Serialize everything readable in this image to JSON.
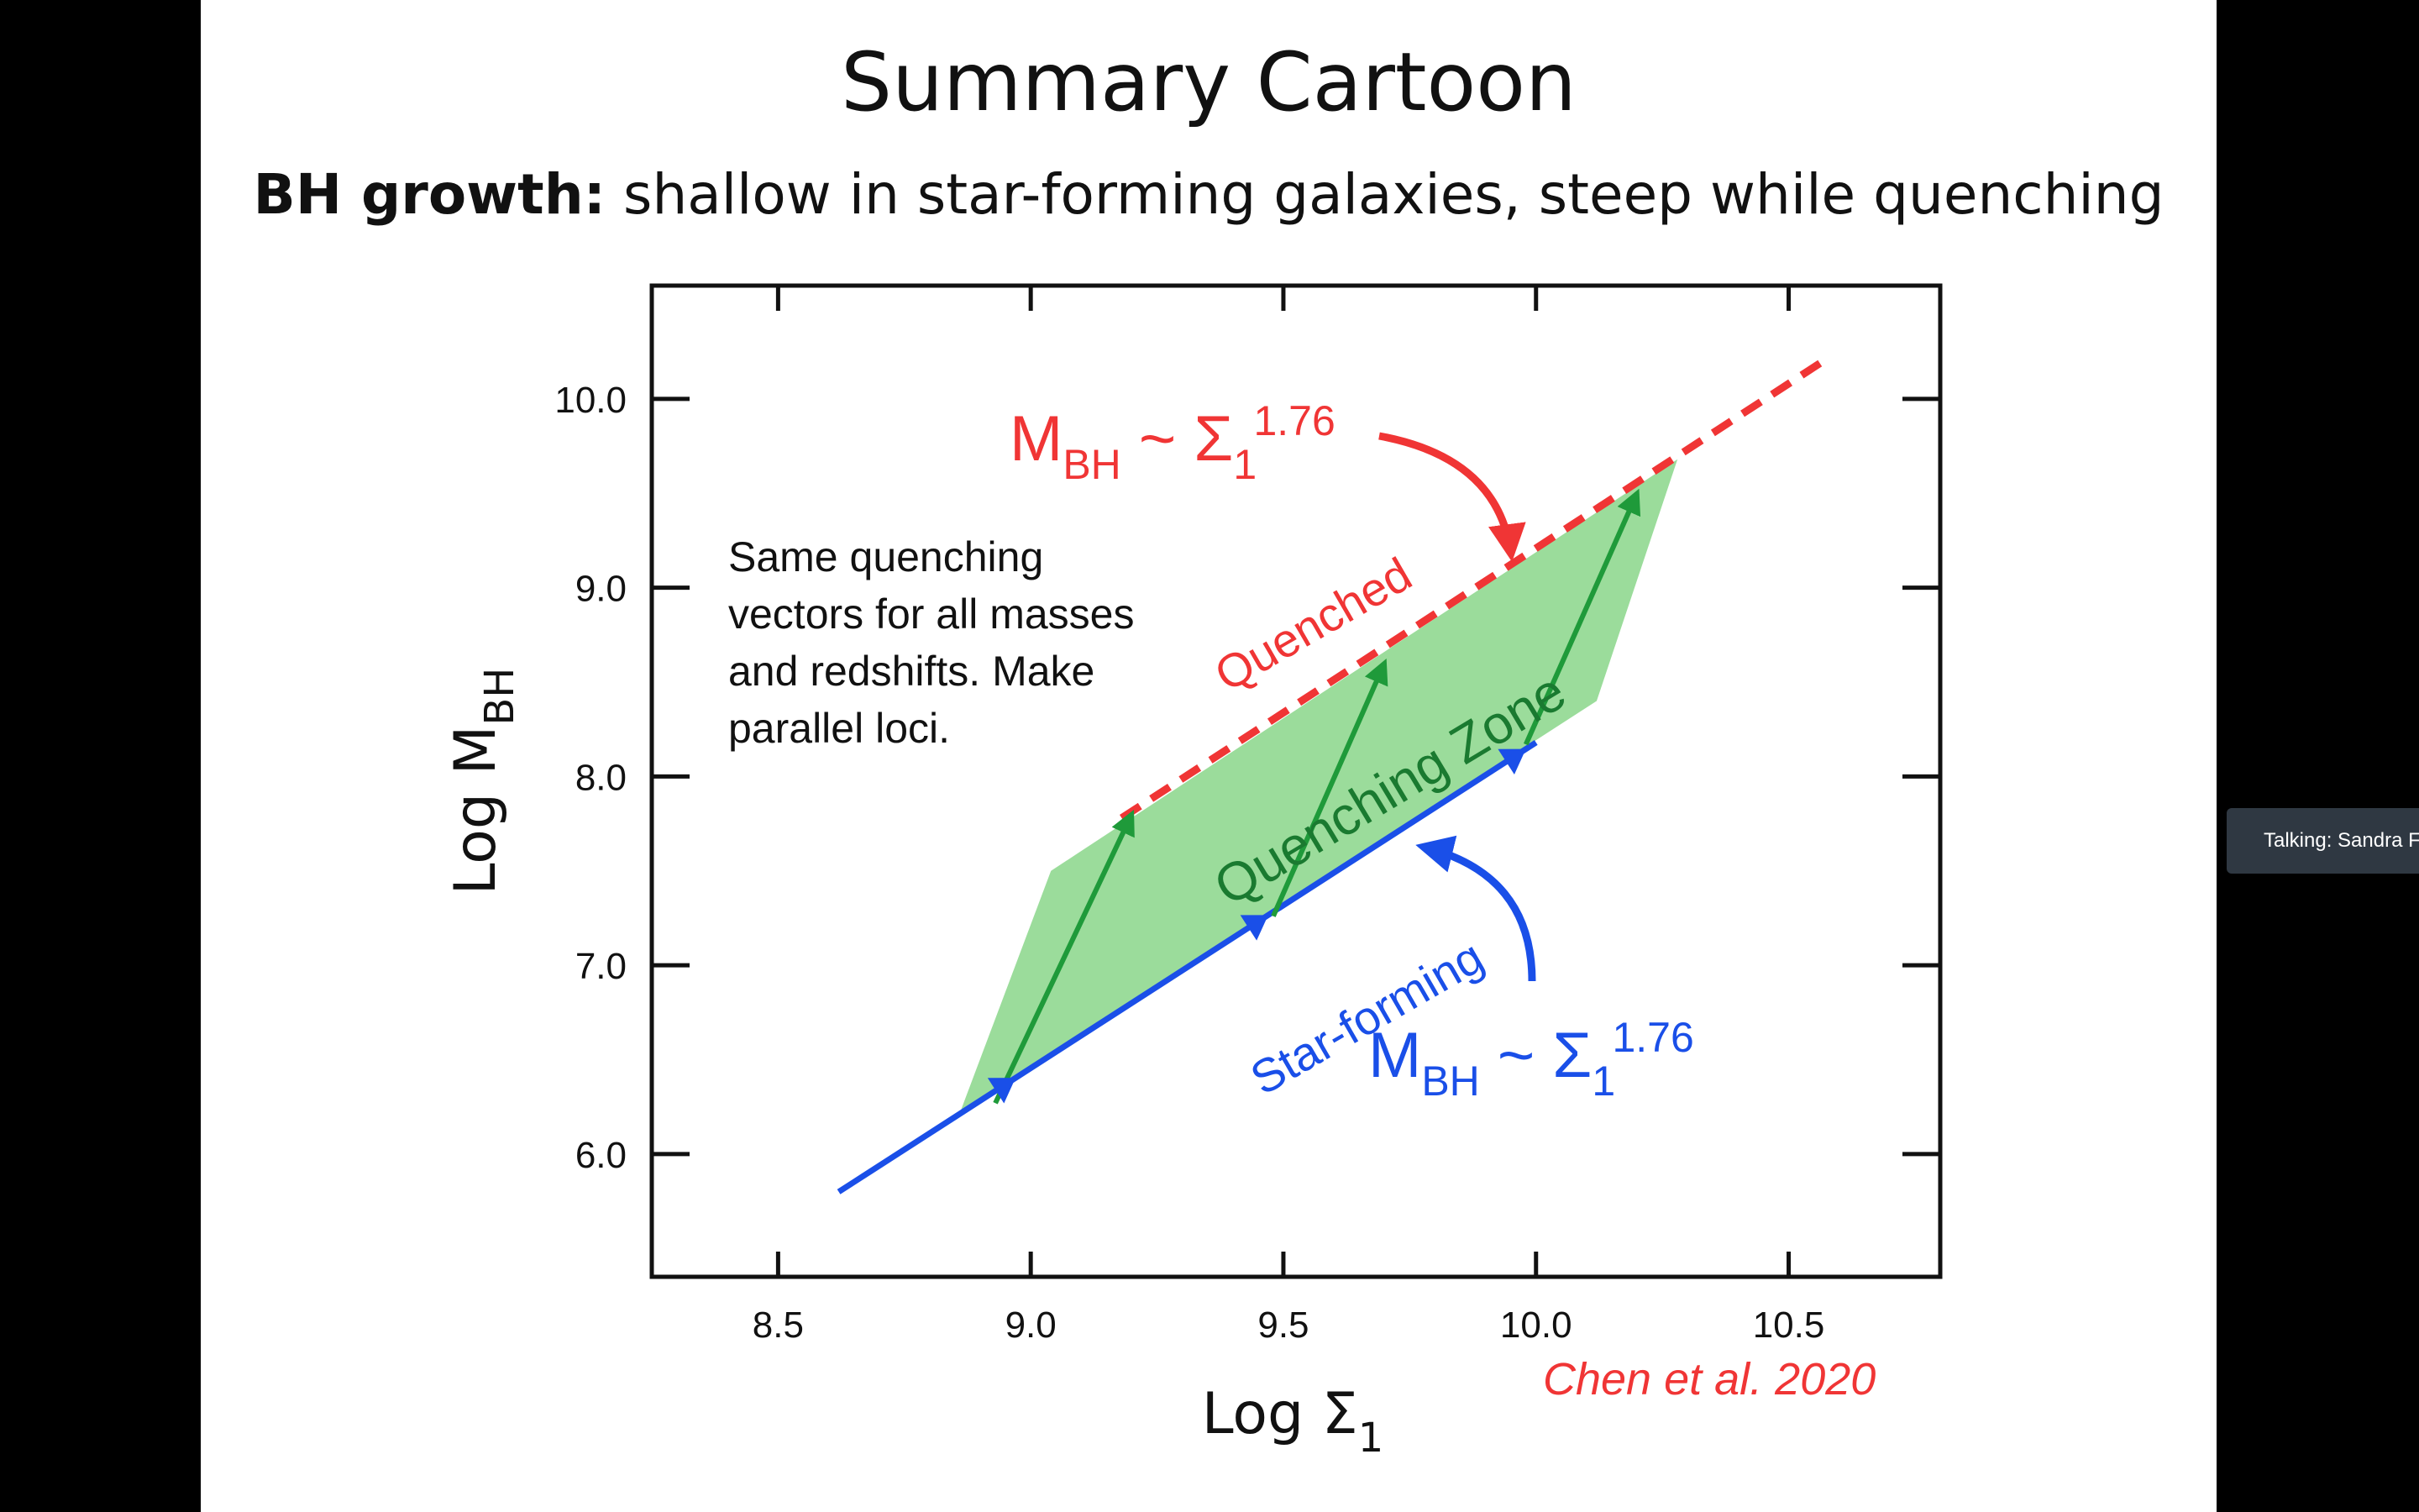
{
  "slide": {
    "title": "Summary Cartoon",
    "subtitle_bold": "BH growth:",
    "subtitle_rest": " shallow in star-forming galaxies, steep while quenching"
  },
  "meeting": {
    "talking_indicator": "Talking: Sandra F"
  },
  "colors": {
    "red": "#f03535",
    "blue": "#1a4fe8",
    "green": "#1f9a3a",
    "zone_fill": "#90d890",
    "axes": "#111111"
  },
  "chart_data": {
    "type": "line",
    "xlabel_main": "Log Σ",
    "xlabel_sub": "1",
    "ylabel_main": "Log M",
    "ylabel_sub": "BH",
    "xlim": [
      8.25,
      10.8
    ],
    "ylim": [
      5.35,
      10.6
    ],
    "x_ticks": [
      8.5,
      9.0,
      9.5,
      10.0,
      10.5
    ],
    "x_tick_labels": [
      "8.5",
      "9.0",
      "9.5",
      "10.0",
      "10.5"
    ],
    "y_ticks": [
      6.0,
      7.0,
      8.0,
      9.0,
      10.0
    ],
    "y_tick_labels": [
      "6.0",
      "7.0",
      "8.0",
      "9.0",
      "10.0"
    ],
    "series": [
      {
        "name": "Star-forming",
        "style": "solid",
        "color": "#1a4fe8",
        "x": [
          8.62,
          10.0
        ],
        "y": [
          5.8,
          8.18
        ]
      },
      {
        "name": "Quenched",
        "style": "dashed",
        "color": "#f03535",
        "x": [
          9.18,
          10.58
        ],
        "y": [
          7.78,
          10.22
        ]
      }
    ],
    "quenching_zone": {
      "x": [
        8.86,
        9.04,
        10.28,
        10.12
      ],
      "y": [
        6.22,
        7.5,
        9.68,
        8.4
      ]
    },
    "quenching_vectors": [
      {
        "x": [
          8.93,
          9.2
        ],
        "y": [
          6.27,
          7.8
        ]
      },
      {
        "x": [
          9.48,
          9.7
        ],
        "y": [
          7.26,
          8.6
        ]
      },
      {
        "x": [
          9.98,
          10.2
        ],
        "y": [
          8.17,
          9.5
        ]
      }
    ],
    "blue_arrow_heads_x": [
      8.97,
      9.47,
      9.98
    ],
    "annotations": {
      "quenched_label": "Quenched",
      "starforming_label": "Star-forming",
      "zone_label": "Quenching Zone",
      "red_formula": {
        "main": "M",
        "sub": "BH",
        "mid": " ~ Σ",
        "sub2": "1",
        "exp": "1.76"
      },
      "blue_formula": {
        "main": "M",
        "sub": "BH",
        "mid": " ~ Σ",
        "sub2": "1",
        "exp": "1.76"
      },
      "note_lines": [
        "Same quenching",
        "vectors for all masses",
        "and redshifts. Make",
        "parallel loci."
      ],
      "citation": "Chen et al. 2020"
    }
  }
}
